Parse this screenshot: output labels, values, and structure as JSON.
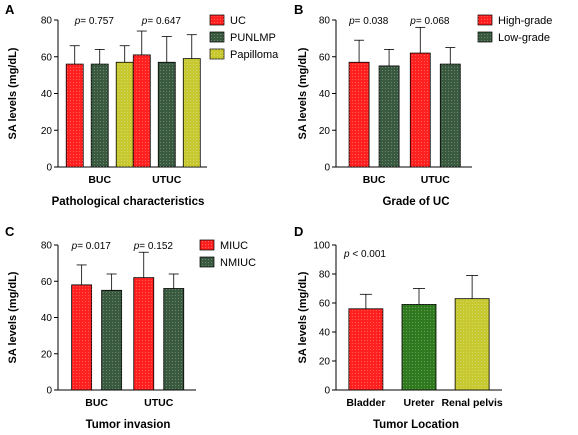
{
  "colors": {
    "red": "#ff2020",
    "green": "#3a5a40",
    "olive": "#c8c830",
    "green2": "#2f7a1e"
  },
  "chart_data": [
    {
      "panel": "A",
      "type": "bar",
      "categories": [
        "BUC",
        "UTUC"
      ],
      "series": [
        {
          "name": "UC",
          "values": [
            56,
            61
          ],
          "errors": [
            10,
            13
          ],
          "color": "#ff2020"
        },
        {
          "name": "PUNLMP",
          "values": [
            56,
            57
          ],
          "errors": [
            8,
            14
          ],
          "color": "#3a5a40"
        },
        {
          "name": "Papilloma",
          "values": [
            57,
            59
          ],
          "errors": [
            9,
            13
          ],
          "color": "#c8c830"
        }
      ],
      "pvalues": [
        "0.757",
        "0.647"
      ],
      "xlabel": "Pathological characteristics",
      "ylabel": "SA levels (mg/dL)",
      "ylim": [
        0,
        80
      ],
      "yticks": [
        0,
        20,
        40,
        60,
        80
      ],
      "legend": "right"
    },
    {
      "panel": "B",
      "type": "bar",
      "categories": [
        "BUC",
        "UTUC"
      ],
      "series": [
        {
          "name": "High-grade",
          "values": [
            57,
            62
          ],
          "errors": [
            12,
            14
          ],
          "color": "#ff2020"
        },
        {
          "name": "Low-grade",
          "values": [
            55,
            56
          ],
          "errors": [
            9,
            9
          ],
          "color": "#3a5a40"
        }
      ],
      "pvalues": [
        "0.038",
        "0.068"
      ],
      "xlabel": "Grade of UC",
      "ylabel": "SA levels (mg/dL)",
      "ylim": [
        0,
        80
      ],
      "yticks": [
        0,
        20,
        40,
        60,
        80
      ],
      "legend": "right"
    },
    {
      "panel": "C",
      "type": "bar",
      "categories": [
        "BUC",
        "UTUC"
      ],
      "series": [
        {
          "name": "MIUC",
          "values": [
            58,
            62
          ],
          "errors": [
            11,
            14
          ],
          "color": "#ff2020"
        },
        {
          "name": "NMIUC",
          "values": [
            55,
            56
          ],
          "errors": [
            9,
            8
          ],
          "color": "#3a5a40"
        }
      ],
      "pvalues": [
        "0.017",
        "0.152"
      ],
      "xlabel": "Tumor invasion",
      "ylabel": "SA levels (mg/dL)",
      "ylim": [
        0,
        80
      ],
      "yticks": [
        0,
        20,
        40,
        60,
        80
      ],
      "legend": "right"
    },
    {
      "panel": "D",
      "type": "bar",
      "categories": [
        "Bladder",
        "Ureter",
        "Renal pelvis"
      ],
      "values": [
        56,
        59,
        63
      ],
      "errors": [
        10,
        11,
        16
      ],
      "colors": [
        "#ff2020",
        "#2f7a1e",
        "#c8c830"
      ],
      "pvalue_label": "p < 0.001",
      "xlabel": "Tumor Location",
      "ylabel": "SA levels (mg/dL)",
      "ylim": [
        0,
        100
      ],
      "yticks": [
        0,
        20,
        40,
        60,
        80,
        100
      ]
    }
  ]
}
